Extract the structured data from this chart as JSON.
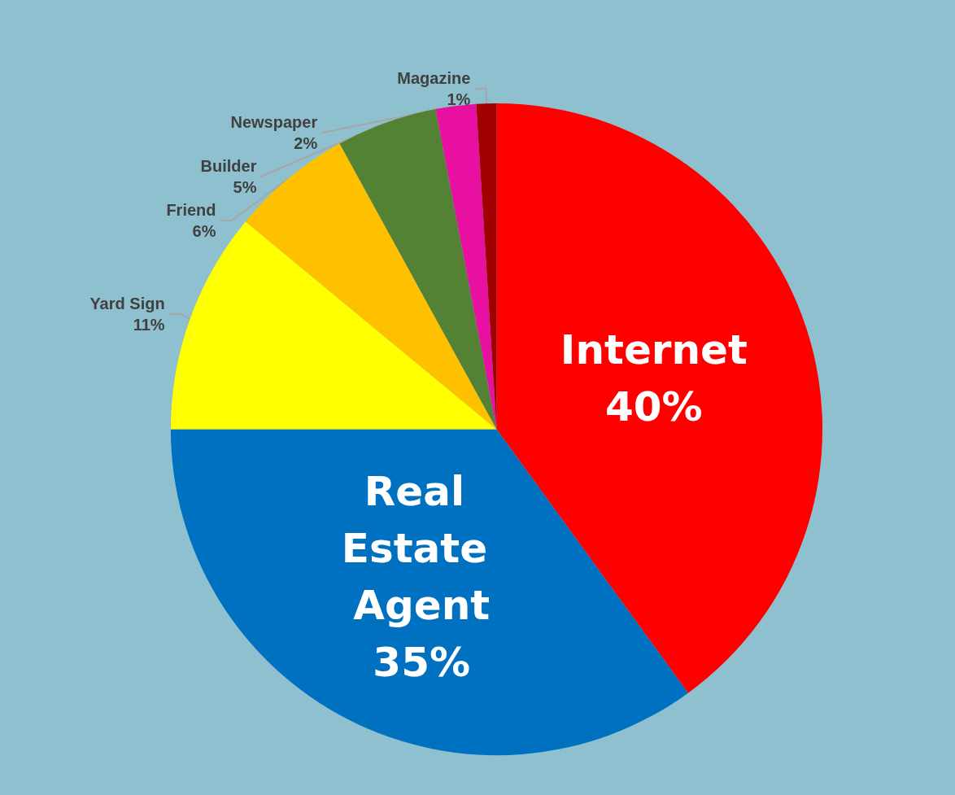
{
  "chart_data": {
    "type": "pie",
    "categories": [
      "Internet",
      "Real Estate Agent",
      "Yard Sign",
      "Friend",
      "Builder",
      "Newspaper",
      "Magazine"
    ],
    "values": [
      40,
      35,
      11,
      6,
      5,
      2,
      1
    ],
    "colors": [
      "#ff0000",
      "#0070c0",
      "#ffff00",
      "#ffc000",
      "#548235",
      "#e810a0",
      "#a00000"
    ],
    "value_labels": [
      "40%",
      "35%",
      "11%",
      "6%",
      "5%",
      "2%",
      "1%"
    ]
  }
}
